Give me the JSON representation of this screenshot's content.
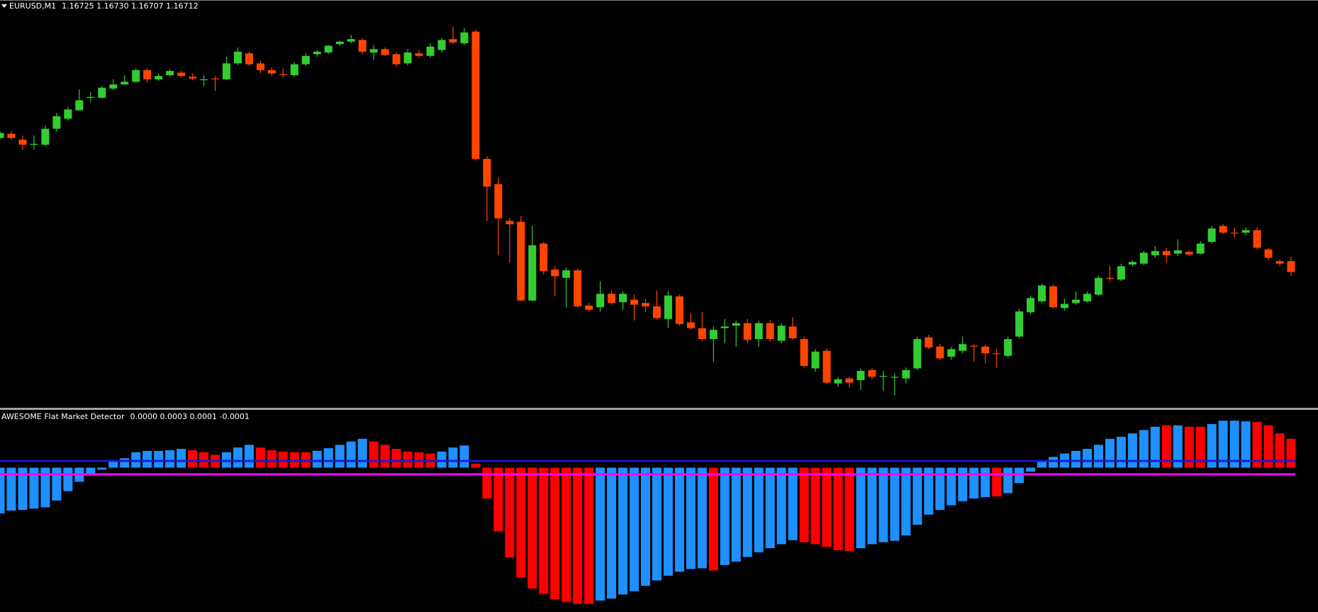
{
  "chart_data": [
    {
      "type": "candlestick",
      "title": "EURUSD,M1",
      "subtitle": "1.16725 1.16730 1.16707 1.16712",
      "ylim": [
        1.1655,
        1.17035
      ],
      "grid": false,
      "up_color": "#32cd32",
      "down_color": "#ff4500",
      "open": [
        1.16872,
        1.16877,
        1.1687,
        1.16864,
        1.16864,
        1.16883,
        1.16895,
        1.16905,
        1.1692,
        1.1692,
        1.16931,
        1.16936,
        1.16939,
        1.16953,
        1.16942,
        1.16947,
        1.1695,
        1.16945,
        1.16941,
        1.16943,
        1.16942,
        1.16961,
        1.16973,
        1.16961,
        1.16953,
        1.16948,
        1.16947,
        1.1696,
        1.16972,
        1.16974,
        1.16984,
        1.16987,
        1.16989,
        1.16974,
        1.16978,
        1.16972,
        1.16961,
        1.16973,
        1.1697,
        1.16977,
        1.1699,
        1.16985,
        1.16999,
        1.16847,
        1.16817,
        1.16773,
        1.16772,
        1.16678,
        1.16746,
        1.16715,
        1.16705,
        1.16714,
        1.16672,
        1.1667,
        1.16686,
        1.16676,
        1.16679,
        1.16675,
        1.16671,
        1.16656,
        1.16683,
        1.16652,
        1.16645,
        1.16632,
        1.16645,
        1.16648,
        1.16651,
        1.16632,
        1.16651,
        1.1663,
        1.16647,
        1.16632,
        1.16597,
        1.16618,
        1.16579,
        1.16585,
        1.16583,
        1.16595,
        1.16587,
        1.16586,
        1.16585,
        1.16597,
        1.16634,
        1.16623,
        1.16611,
        1.16618,
        1.16624,
        1.16623,
        1.16615,
        1.16612,
        1.16635,
        1.16664,
        1.16677,
        1.16695,
        1.16669,
        1.16675,
        1.16677,
        1.16685,
        1.16705,
        1.16703,
        1.16721,
        1.16722,
        1.16732,
        1.16737,
        1.16734,
        1.16736,
        1.16734,
        1.16748,
        1.16767,
        1.16759,
        1.16759,
        1.16762,
        1.16739,
        1.16725,
        1.16725
      ],
      "high": [
        1.1688,
        1.1688,
        1.16875,
        1.16875,
        1.16887,
        1.16902,
        1.16909,
        1.1693,
        1.16927,
        1.16934,
        1.16942,
        1.16947,
        1.16955,
        1.16955,
        1.16949,
        1.16954,
        1.16952,
        1.16949,
        1.16947,
        1.16946,
        1.16969,
        1.1698,
        1.16975,
        1.16964,
        1.16956,
        1.16955,
        1.16962,
        1.16973,
        1.16977,
        1.16983,
        1.16988,
        1.16995,
        1.16991,
        1.16983,
        1.1698,
        1.16974,
        1.16978,
        1.16977,
        1.16985,
        1.16991,
        1.17005,
        1.17003,
        1.17001,
        1.1685,
        1.16825,
        1.16777,
        1.16779,
        1.16767,
        1.16748,
        1.16719,
        1.16717,
        1.16716,
        1.16675,
        1.16701,
        1.1669,
        1.16689,
        1.16685,
        1.1668,
        1.1669,
        1.16689,
        1.16685,
        1.16663,
        1.16664,
        1.16647,
        1.16656,
        1.16654,
        1.16656,
        1.16654,
        1.16655,
        1.16651,
        1.16658,
        1.16635,
        1.1662,
        1.16621,
        1.16587,
        1.16587,
        1.16597,
        1.16598,
        1.16594,
        1.16591,
        1.16598,
        1.16635,
        1.16637,
        1.16626,
        1.16623,
        1.16635,
        1.16626,
        1.16625,
        1.1662,
        1.16635,
        1.16668,
        1.16684,
        1.16698,
        1.16697,
        1.1668,
        1.16689,
        1.16689,
        1.16708,
        1.16719,
        1.16722,
        1.16726,
        1.16737,
        1.16743,
        1.16741,
        1.16751,
        1.16738,
        1.16749,
        1.16767,
        1.16769,
        1.16765,
        1.16765,
        1.16765,
        1.16741,
        1.16727,
        1.1673
      ],
      "low": [
        1.1687,
        1.1687,
        1.16858,
        1.16858,
        1.16862,
        1.1688,
        1.16893,
        1.16905,
        1.16915,
        1.16919,
        1.16929,
        1.16935,
        1.16938,
        1.16938,
        1.1694,
        1.16946,
        1.16944,
        1.16941,
        1.16934,
        1.16928,
        1.16941,
        1.16959,
        1.16958,
        1.16949,
        1.16946,
        1.16944,
        1.16945,
        1.16958,
        1.16969,
        1.16972,
        1.16982,
        1.16985,
        1.16972,
        1.16965,
        1.1697,
        1.16957,
        1.16959,
        1.16968,
        1.16968,
        1.16974,
        1.16984,
        1.16983,
        1.16845,
        1.16773,
        1.16732,
        1.16723,
        1.16677,
        1.16677,
        1.16709,
        1.16683,
        1.1667,
        1.16669,
        1.16665,
        1.16665,
        1.16673,
        1.16667,
        1.16654,
        1.16664,
        1.16655,
        1.16645,
        1.16648,
        1.16643,
        1.1663,
        1.16605,
        1.16627,
        1.16623,
        1.16627,
        1.16623,
        1.16629,
        1.16627,
        1.16631,
        1.16598,
        1.16593,
        1.16578,
        1.16575,
        1.16574,
        1.16571,
        1.16584,
        1.1657,
        1.16565,
        1.16579,
        1.16595,
        1.1662,
        1.16607,
        1.16607,
        1.16615,
        1.16605,
        1.16603,
        1.16598,
        1.1661,
        1.16633,
        1.16662,
        1.16675,
        1.16668,
        1.16666,
        1.16673,
        1.16675,
        1.16683,
        1.16701,
        1.16701,
        1.16719,
        1.1672,
        1.16729,
        1.16723,
        1.16731,
        1.16731,
        1.16733,
        1.16746,
        1.16757,
        1.16753,
        1.16756,
        1.16739,
        1.16726,
        1.16719,
        1.16707
      ],
      "close": [
        1.16878,
        1.16872,
        1.16864,
        1.16865,
        1.16883,
        1.16898,
        1.16906,
        1.16917,
        1.16921,
        1.16932,
        1.16936,
        1.16939,
        1.16953,
        1.16942,
        1.16946,
        1.16952,
        1.16946,
        1.16943,
        1.16942,
        1.16942,
        1.16961,
        1.16975,
        1.1696,
        1.16953,
        1.16949,
        1.16947,
        1.1696,
        1.1697,
        1.16975,
        1.16982,
        1.16987,
        1.1699,
        1.16975,
        1.16978,
        1.16971,
        1.1696,
        1.16974,
        1.1697,
        1.16981,
        1.16989,
        1.16986,
        1.16998,
        1.16847,
        1.16814,
        1.16776,
        1.16769,
        1.16678,
        1.16744,
        1.16713,
        1.16707,
        1.16714,
        1.16671,
        1.16667,
        1.16686,
        1.16675,
        1.16686,
        1.16673,
        1.16671,
        1.16657,
        1.16684,
        1.1665,
        1.16645,
        1.16632,
        1.16643,
        1.16647,
        1.16651,
        1.16631,
        1.16651,
        1.16632,
        1.16648,
        1.16633,
        1.166,
        1.16617,
        1.1658,
        1.16584,
        1.1658,
        1.16594,
        1.16587,
        1.16588,
        1.16587,
        1.16595,
        1.16632,
        1.16622,
        1.16609,
        1.1662,
        1.16626,
        1.16623,
        1.16615,
        1.16614,
        1.16632,
        1.16665,
        1.16681,
        1.16696,
        1.1667,
        1.16674,
        1.16679,
        1.16686,
        1.16705,
        1.16704,
        1.16719,
        1.16724,
        1.16735,
        1.16737,
        1.16732,
        1.16738,
        1.16733,
        1.16746,
        1.16764,
        1.16759,
        1.16758,
        1.16762,
        1.16741,
        1.16729,
        1.16722,
        1.16712
      ]
    },
    {
      "type": "histogram",
      "title": "AWESOME Flat Market Detector",
      "subtitle": "0.0000 0.0003 0.0001 -0.0001",
      "ylim": [
        -0.00215,
        0.00085
      ],
      "grid": false,
      "values": [
        -0.00068,
        -0.00064,
        -0.00063,
        -0.00061,
        -0.00059,
        -0.00049,
        -0.00035,
        -0.00021,
        -9e-05,
        -3e-05,
        9e-05,
        0.00014,
        0.00023,
        0.00025,
        0.00025,
        0.00026,
        0.00028,
        0.00026,
        0.00023,
        0.00019,
        0.00023,
        0.0003,
        0.00034,
        0.0003,
        0.00026,
        0.00024,
        0.00023,
        0.00023,
        0.00025,
        0.00029,
        0.00034,
        0.00039,
        0.00043,
        0.00039,
        0.00034,
        0.00028,
        0.00024,
        0.00023,
        0.00021,
        0.00024,
        0.0003,
        0.00033,
        6e-05,
        -0.00046,
        -0.00095,
        -0.00134,
        -0.00164,
        -0.0018,
        -0.00188,
        -0.00196,
        -0.002,
        -0.00203,
        -0.00203,
        -0.00198,
        -0.00195,
        -0.00189,
        -0.00184,
        -0.00176,
        -0.00168,
        -0.00161,
        -0.00155,
        -0.00151,
        -0.0015,
        -0.00153,
        -0.00145,
        -0.0014,
        -0.00133,
        -0.00126,
        -0.0012,
        -0.00114,
        -0.00108,
        -0.00111,
        -0.00114,
        -0.00118,
        -0.00123,
        -0.00124,
        -0.0012,
        -0.00114,
        -0.00111,
        -0.00109,
        -0.00101,
        -0.00085,
        -0.0007,
        -0.00063,
        -0.00056,
        -0.0005,
        -0.00046,
        -0.00044,
        -0.00043,
        -0.00038,
        -0.00023,
        -6e-05,
        0.0001,
        0.00016,
        0.00021,
        0.00025,
        0.00028,
        0.00034,
        0.00043,
        0.00046,
        0.00051,
        0.00056,
        0.00061,
        0.00063,
        0.00063,
        0.00061,
        0.00061,
        0.00065,
        0.0007,
        0.0007,
        0.00069,
        0.00068,
        0.00063,
        0.00051,
        0.00043
      ],
      "colors": [
        "#1e90ff",
        "#1e90ff",
        "#1e90ff",
        "#1e90ff",
        "#1e90ff",
        "#1e90ff",
        "#1e90ff",
        "#1e90ff",
        "#1e90ff",
        "#1e90ff",
        "#1e90ff",
        "#1e90ff",
        "#1e90ff",
        "#1e90ff",
        "#1e90ff",
        "#1e90ff",
        "#1e90ff",
        "#ff0000",
        "#ff0000",
        "#ff0000",
        "#1e90ff",
        "#1e90ff",
        "#1e90ff",
        "#ff0000",
        "#ff0000",
        "#ff0000",
        "#ff0000",
        "#ff0000",
        "#1e90ff",
        "#1e90ff",
        "#1e90ff",
        "#1e90ff",
        "#1e90ff",
        "#ff0000",
        "#ff0000",
        "#ff0000",
        "#ff0000",
        "#ff0000",
        "#ff0000",
        "#1e90ff",
        "#1e90ff",
        "#1e90ff",
        "#ff0000",
        "#ff0000",
        "#ff0000",
        "#ff0000",
        "#ff0000",
        "#ff0000",
        "#ff0000",
        "#ff0000",
        "#ff0000",
        "#ff0000",
        "#ff0000",
        "#1e90ff",
        "#1e90ff",
        "#1e90ff",
        "#1e90ff",
        "#1e90ff",
        "#1e90ff",
        "#1e90ff",
        "#1e90ff",
        "#1e90ff",
        "#1e90ff",
        "#ff0000",
        "#1e90ff",
        "#1e90ff",
        "#1e90ff",
        "#1e90ff",
        "#1e90ff",
        "#1e90ff",
        "#1e90ff",
        "#ff0000",
        "#ff0000",
        "#ff0000",
        "#ff0000",
        "#ff0000",
        "#1e90ff",
        "#1e90ff",
        "#1e90ff",
        "#1e90ff",
        "#1e90ff",
        "#1e90ff",
        "#1e90ff",
        "#1e90ff",
        "#1e90ff",
        "#1e90ff",
        "#1e90ff",
        "#1e90ff",
        "#ff0000",
        "#1e90ff",
        "#1e90ff",
        "#1e90ff",
        "#1e90ff",
        "#1e90ff",
        "#1e90ff",
        "#1e90ff",
        "#1e90ff",
        "#1e90ff",
        "#1e90ff",
        "#1e90ff",
        "#1e90ff",
        "#1e90ff",
        "#1e90ff",
        "#ff0000",
        "#1e90ff",
        "#ff0000",
        "#ff0000",
        "#1e90ff",
        "#1e90ff",
        "#1e90ff",
        "#1e90ff",
        "#ff0000",
        "#ff0000",
        "#ff0000",
        "#ff0000"
      ],
      "levels": [
        0.0001,
        -0.0001
      ],
      "level_colors": [
        "#1a1ad0",
        "#ff00ff"
      ]
    }
  ]
}
